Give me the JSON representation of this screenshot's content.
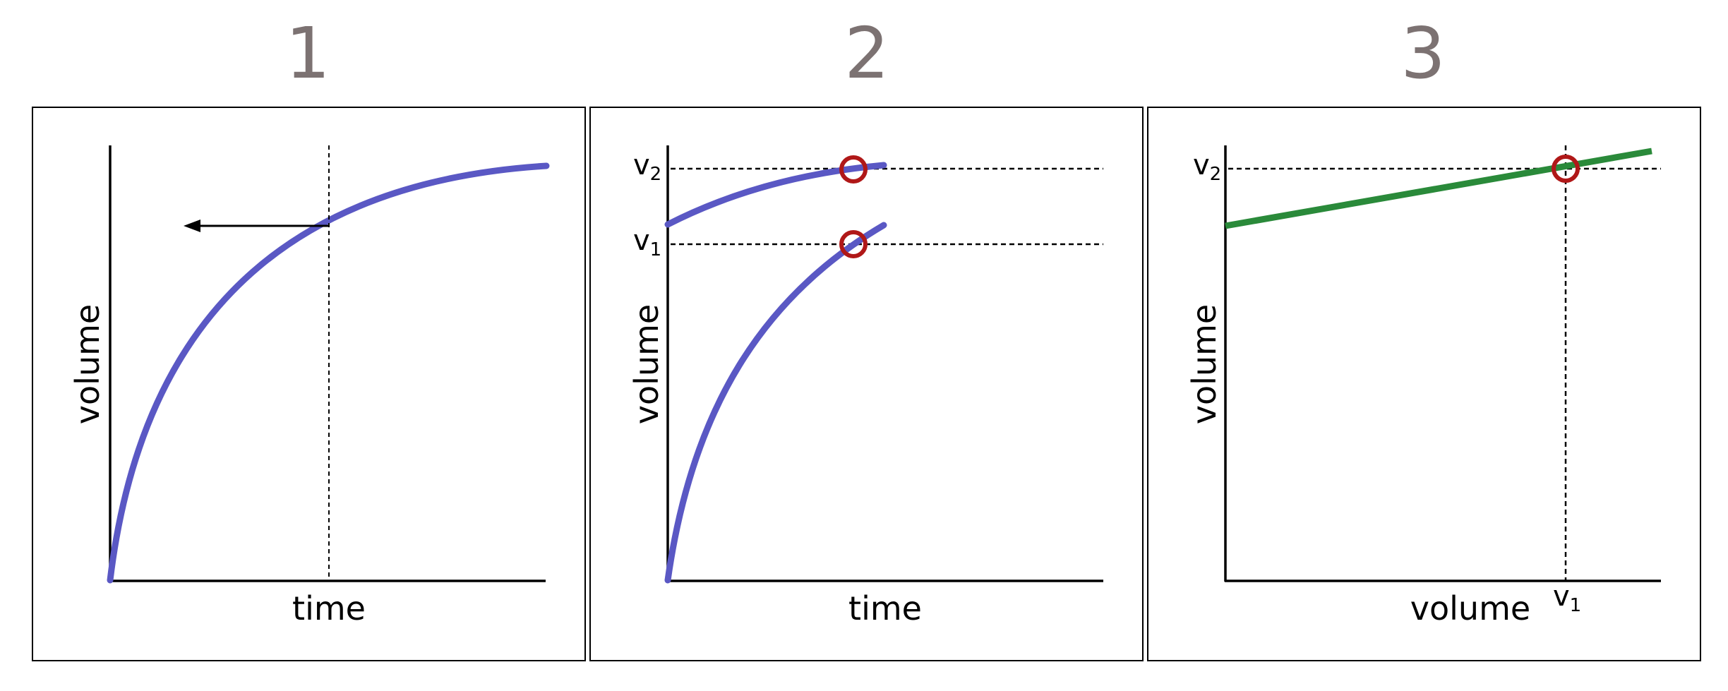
{
  "colors": {
    "curve": "#5a58c4",
    "line": "#2a8a3a",
    "marker": "#b01818",
    "number": "#7c7272",
    "frame": "#000000"
  },
  "panels": [
    {
      "number": "1",
      "ylabel": "volume",
      "xlabel": "time"
    },
    {
      "number": "2",
      "ylabel": "volume",
      "xlabel": "time",
      "levels": [
        {
          "main": "v",
          "sub": "2"
        },
        {
          "main": "v",
          "sub": "1"
        }
      ]
    },
    {
      "number": "3",
      "ylabel": "volume",
      "xlabel": "volume",
      "ytick": {
        "main": "v",
        "sub": "2"
      },
      "xtick": {
        "main": "v",
        "sub": "1"
      }
    }
  ]
}
